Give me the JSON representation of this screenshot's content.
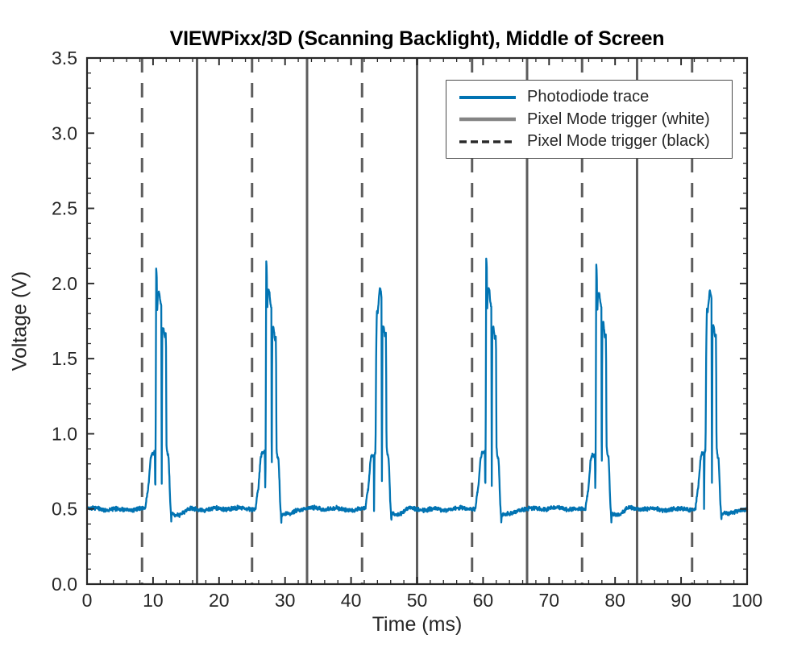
{
  "chart_data": {
    "type": "line",
    "title": "VIEWPixx/3D (Scanning Backlight), Middle of Screen",
    "xlabel": "Time (ms)",
    "ylabel": "Voltage (V)",
    "xlim": [
      0,
      100
    ],
    "ylim": [
      0,
      3.5
    ],
    "xticks": [
      0,
      10,
      20,
      30,
      40,
      50,
      60,
      70,
      80,
      90,
      100
    ],
    "xtick_labels": [
      "0",
      "10",
      "20",
      "30",
      "40",
      "50",
      "60",
      "70",
      "80",
      "90",
      "100"
    ],
    "x_minor_step": 2,
    "yticks": [
      0.0,
      0.5,
      1.0,
      1.5,
      2.0,
      2.5,
      3.0,
      3.5
    ],
    "ytick_labels": [
      "0.0",
      "0.5",
      "1.0",
      "1.5",
      "2.0",
      "2.5",
      "3.0",
      "3.5"
    ],
    "y_minor_step": 0.1,
    "grid": false,
    "tick_direction": "in",
    "legend": {
      "position": "upper right",
      "entries": [
        {
          "label": "Photodiode trace",
          "color": "#0173b2",
          "dash": "none",
          "width": 4
        },
        {
          "label": "Pixel Mode trigger (white)",
          "color": "#848484",
          "dash": "none",
          "width": 4.5
        },
        {
          "label": "Pixel Mode trigger (black)",
          "color": "#2a2a2a",
          "dash": "9 5",
          "width": 3.5
        }
      ]
    },
    "series": [
      {
        "name": "Pixel Mode trigger (white)",
        "type": "vlines",
        "style": "solid",
        "color": "#5d5d5d",
        "x": [
          16.667,
          33.333,
          50.0,
          66.667,
          83.333
        ]
      },
      {
        "name": "Pixel Mode trigger (black)",
        "type": "vlines",
        "style": "dashed",
        "color": "#5d5d5d",
        "x": [
          8.333,
          25.0,
          41.667,
          58.333,
          75.0,
          91.667
        ]
      },
      {
        "name": "Photodiode trace",
        "type": "line",
        "color": "#0173b2",
        "baseline_v": 0.5,
        "undershoot_v": 0.465,
        "period_ms": 16.667,
        "noise_v": 0.016,
        "bursts": [
          {
            "start": 8.85,
            "shape": "spiky",
            "spike": 2.1,
            "p2": 1.93,
            "p3": 1.68
          },
          {
            "start": 25.52,
            "shape": "spiky",
            "spike": 2.15,
            "p2": 1.95,
            "p3": 1.7
          },
          {
            "start": 42.18,
            "shape": "round",
            "p1": 1.97,
            "p2": 1.7
          },
          {
            "start": 58.85,
            "shape": "spiky",
            "spike": 2.16,
            "p2": 1.96,
            "p3": 1.7
          },
          {
            "start": 75.52,
            "shape": "spiky",
            "spike": 2.14,
            "p2": 1.93,
            "p3": 1.72
          },
          {
            "start": 92.18,
            "shape": "round",
            "p1": 1.95,
            "p2": 1.71
          }
        ]
      }
    ],
    "colors": {
      "trace": "#0173b2",
      "trigger_lines": "#5d5d5d",
      "frame": "#262626",
      "tick_labels": "#262626",
      "background": "#ffffff"
    }
  }
}
